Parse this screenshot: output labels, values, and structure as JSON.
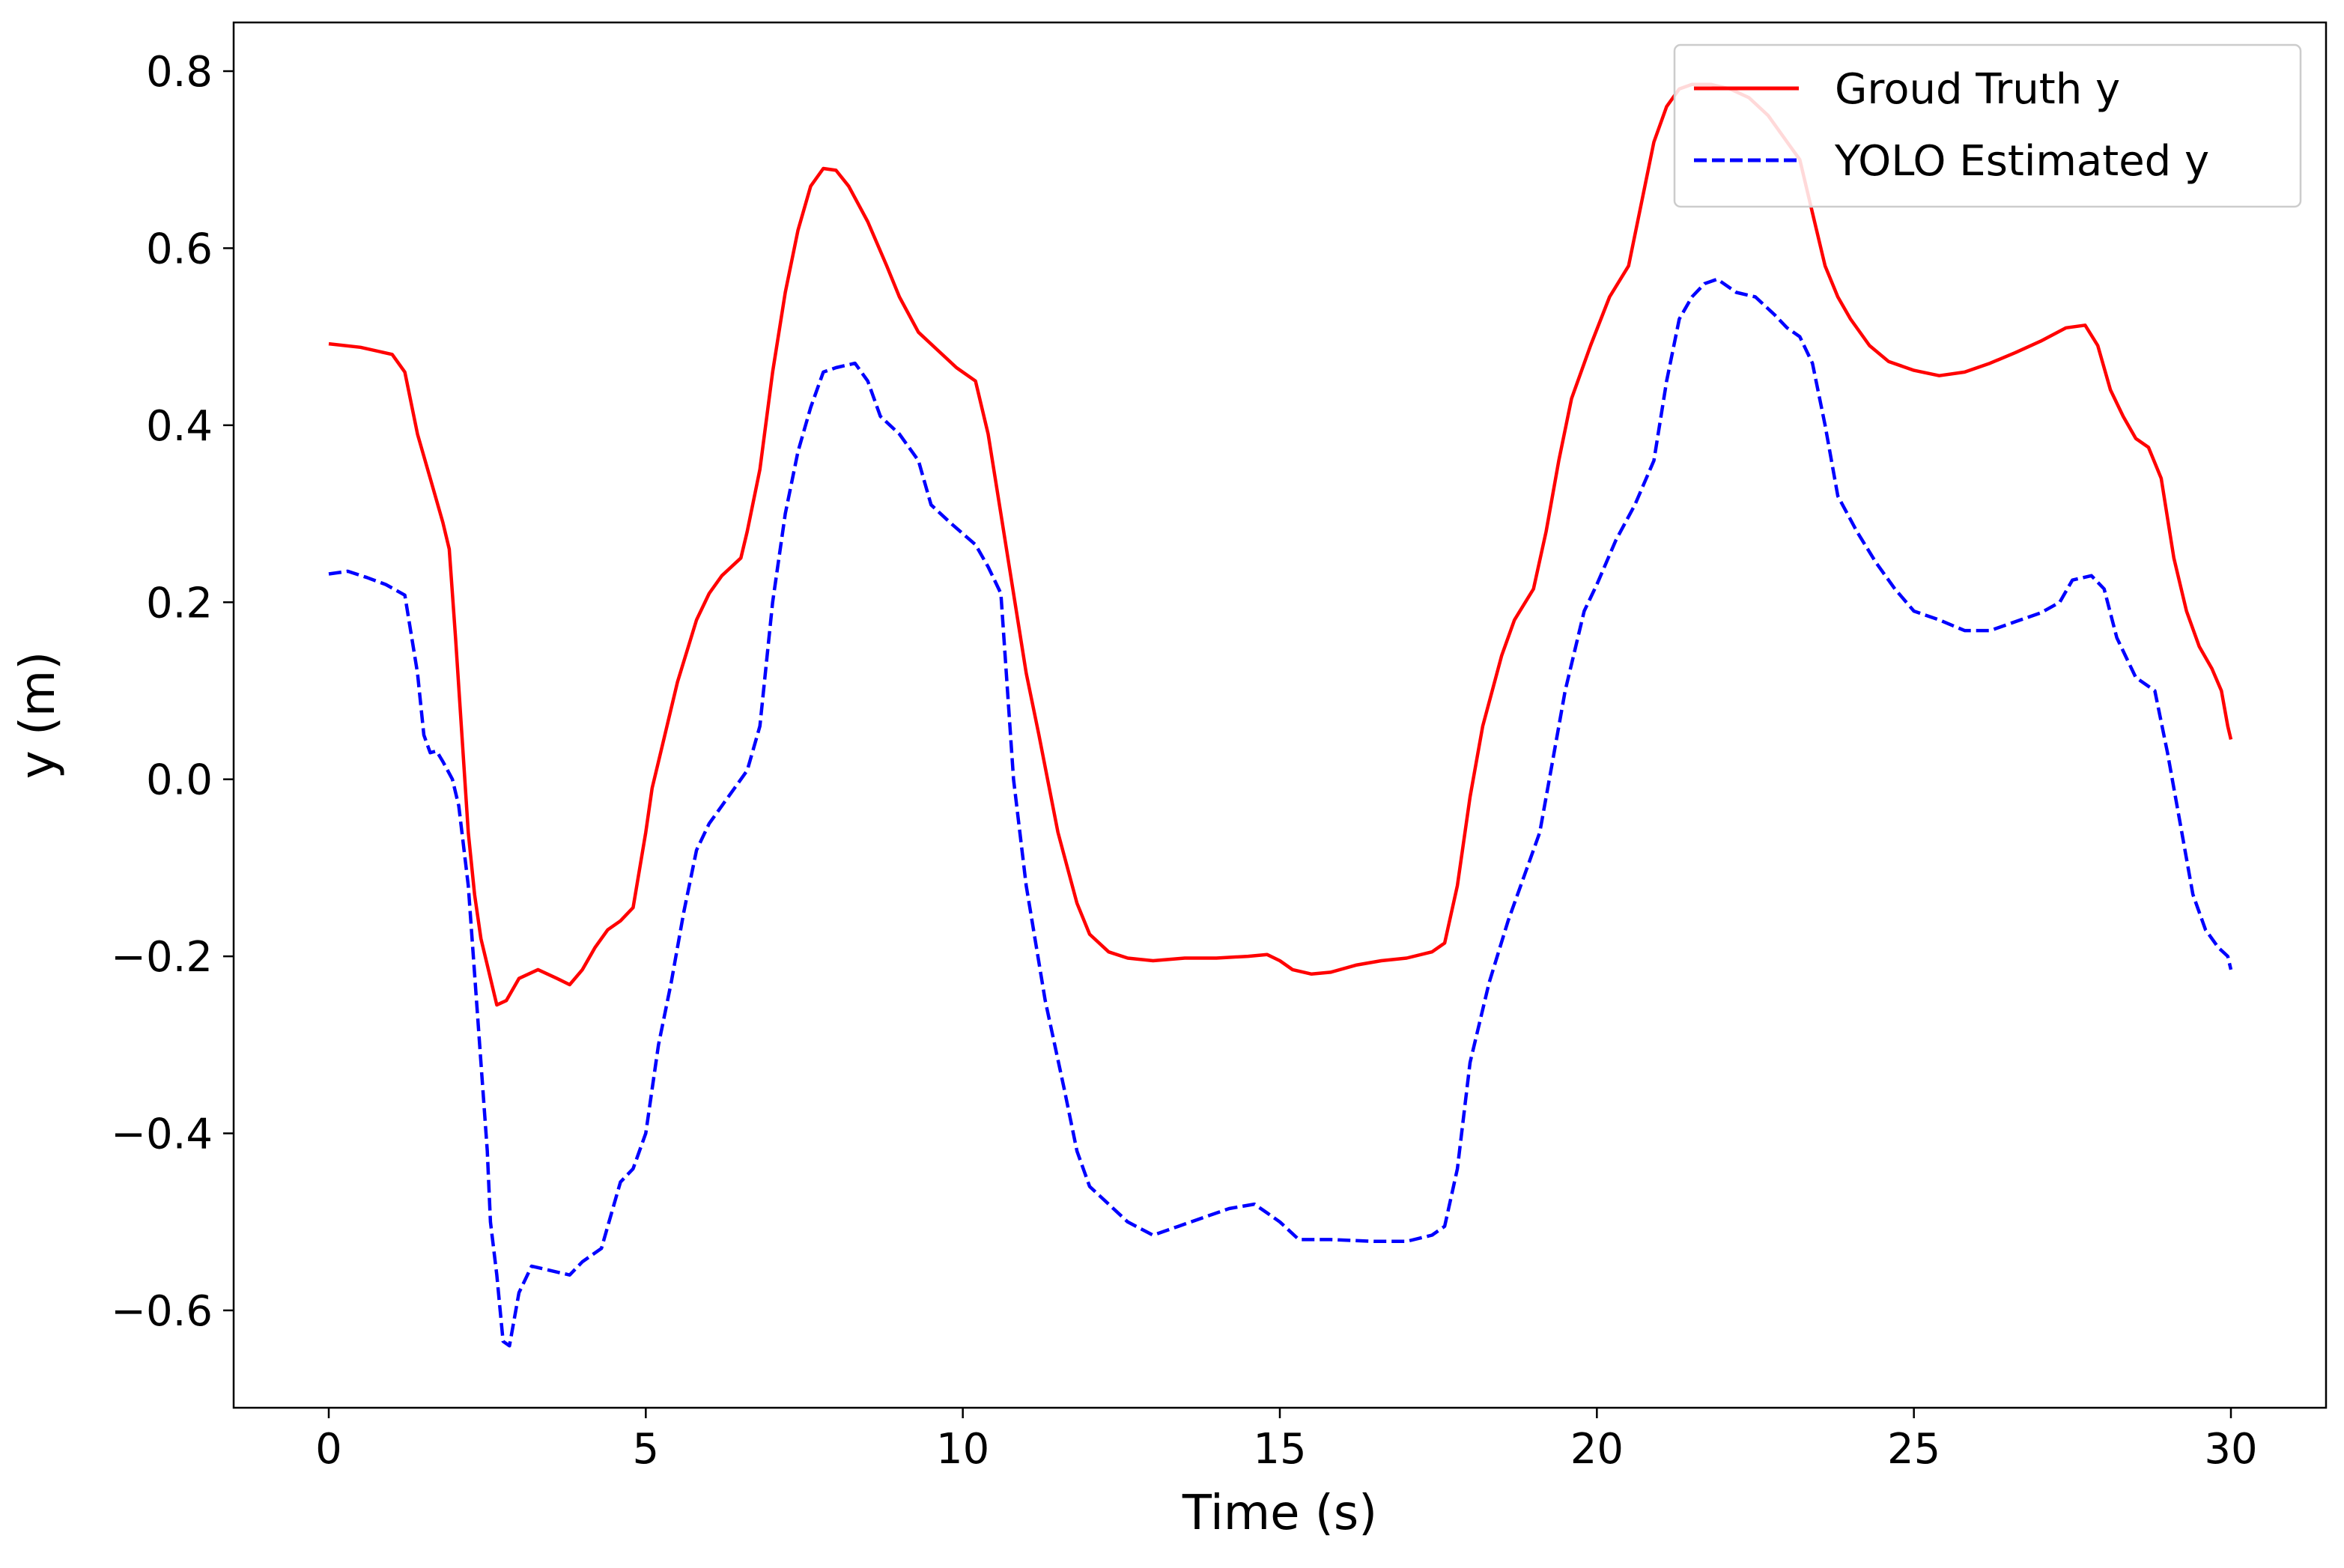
{
  "chart_data": {
    "type": "line",
    "title": "",
    "xlabel": "Time (s)",
    "ylabel": "y (m)",
    "xlim": [
      -1.5,
      31.5
    ],
    "ylim": [
      -0.71,
      0.855
    ],
    "xticks": [
      0,
      5,
      10,
      15,
      20,
      25,
      30
    ],
    "xtick_labels": [
      "0",
      "5",
      "10",
      "15",
      "20",
      "25",
      "30"
    ],
    "yticks": [
      -0.6,
      -0.4,
      -0.2,
      0.0,
      0.2,
      0.4,
      0.6,
      0.8
    ],
    "ytick_labels": [
      "−0.6",
      "−0.4",
      "−0.2",
      "0.0",
      "0.2",
      "0.4",
      "0.6",
      "0.8"
    ],
    "grid": false,
    "legend_position": "top-right",
    "series": [
      {
        "name": "Groud Truth y",
        "color": "#ff0000",
        "style": "solid",
        "points": [
          [
            0.0,
            0.492
          ],
          [
            0.5,
            0.488
          ],
          [
            1.0,
            0.48
          ],
          [
            1.2,
            0.46
          ],
          [
            1.4,
            0.39
          ],
          [
            1.6,
            0.34
          ],
          [
            1.8,
            0.29
          ],
          [
            1.9,
            0.26
          ],
          [
            2.0,
            0.16
          ],
          [
            2.1,
            0.05
          ],
          [
            2.2,
            -0.06
          ],
          [
            2.3,
            -0.13
          ],
          [
            2.4,
            -0.18
          ],
          [
            2.5,
            -0.21
          ],
          [
            2.65,
            -0.255
          ],
          [
            2.8,
            -0.25
          ],
          [
            3.0,
            -0.225
          ],
          [
            3.3,
            -0.215
          ],
          [
            3.6,
            -0.225
          ],
          [
            3.8,
            -0.232
          ],
          [
            4.0,
            -0.215
          ],
          [
            4.2,
            -0.19
          ],
          [
            4.4,
            -0.17
          ],
          [
            4.6,
            -0.16
          ],
          [
            4.8,
            -0.145
          ],
          [
            5.0,
            -0.06
          ],
          [
            5.1,
            -0.01
          ],
          [
            5.2,
            0.02
          ],
          [
            5.5,
            0.11
          ],
          [
            5.8,
            0.18
          ],
          [
            6.0,
            0.21
          ],
          [
            6.2,
            0.23
          ],
          [
            6.5,
            0.25
          ],
          [
            6.6,
            0.28
          ],
          [
            6.8,
            0.35
          ],
          [
            7.0,
            0.46
          ],
          [
            7.2,
            0.55
          ],
          [
            7.4,
            0.62
          ],
          [
            7.6,
            0.67
          ],
          [
            7.8,
            0.69
          ],
          [
            8.0,
            0.688
          ],
          [
            8.2,
            0.67
          ],
          [
            8.5,
            0.63
          ],
          [
            8.8,
            0.58
          ],
          [
            9.0,
            0.545
          ],
          [
            9.3,
            0.505
          ],
          [
            9.6,
            0.485
          ],
          [
            9.9,
            0.465
          ],
          [
            10.2,
            0.45
          ],
          [
            10.4,
            0.39
          ],
          [
            10.6,
            0.3
          ],
          [
            10.8,
            0.21
          ],
          [
            11.0,
            0.12
          ],
          [
            11.2,
            0.05
          ],
          [
            11.5,
            -0.06
          ],
          [
            11.8,
            -0.14
          ],
          [
            12.0,
            -0.175
          ],
          [
            12.3,
            -0.195
          ],
          [
            12.6,
            -0.202
          ],
          [
            13.0,
            -0.205
          ],
          [
            13.5,
            -0.202
          ],
          [
            14.0,
            -0.202
          ],
          [
            14.5,
            -0.2
          ],
          [
            14.8,
            -0.198
          ],
          [
            15.0,
            -0.205
          ],
          [
            15.2,
            -0.215
          ],
          [
            15.5,
            -0.22
          ],
          [
            15.8,
            -0.218
          ],
          [
            16.2,
            -0.21
          ],
          [
            16.6,
            -0.205
          ],
          [
            17.0,
            -0.202
          ],
          [
            17.4,
            -0.195
          ],
          [
            17.6,
            -0.185
          ],
          [
            17.8,
            -0.12
          ],
          [
            18.0,
            -0.02
          ],
          [
            18.2,
            0.06
          ],
          [
            18.5,
            0.14
          ],
          [
            18.7,
            0.18
          ],
          [
            19.0,
            0.215
          ],
          [
            19.2,
            0.28
          ],
          [
            19.4,
            0.36
          ],
          [
            19.6,
            0.43
          ],
          [
            19.9,
            0.49
          ],
          [
            20.2,
            0.545
          ],
          [
            20.5,
            0.58
          ],
          [
            20.7,
            0.65
          ],
          [
            20.9,
            0.72
          ],
          [
            21.1,
            0.76
          ],
          [
            21.3,
            0.78
          ],
          [
            21.5,
            0.785
          ],
          [
            21.8,
            0.785
          ],
          [
            22.1,
            0.78
          ],
          [
            22.4,
            0.77
          ],
          [
            22.7,
            0.75
          ],
          [
            23.0,
            0.72
          ],
          [
            23.2,
            0.7
          ],
          [
            23.4,
            0.64
          ],
          [
            23.6,
            0.58
          ],
          [
            23.8,
            0.545
          ],
          [
            24.0,
            0.52
          ],
          [
            24.3,
            0.49
          ],
          [
            24.6,
            0.472
          ],
          [
            25.0,
            0.462
          ],
          [
            25.4,
            0.456
          ],
          [
            25.8,
            0.46
          ],
          [
            26.2,
            0.47
          ],
          [
            26.6,
            0.482
          ],
          [
            27.0,
            0.495
          ],
          [
            27.4,
            0.51
          ],
          [
            27.7,
            0.513
          ],
          [
            27.9,
            0.49
          ],
          [
            28.1,
            0.44
          ],
          [
            28.3,
            0.41
          ],
          [
            28.5,
            0.385
          ],
          [
            28.7,
            0.375
          ],
          [
            28.9,
            0.34
          ],
          [
            29.1,
            0.25
          ],
          [
            29.3,
            0.19
          ],
          [
            29.5,
            0.15
          ],
          [
            29.7,
            0.125
          ],
          [
            29.85,
            0.1
          ],
          [
            29.95,
            0.06
          ],
          [
            30.0,
            0.045
          ]
        ]
      },
      {
        "name": "YOLO Estimated y",
        "color": "#0000ff",
        "style": "dashed",
        "points": [
          [
            0.0,
            0.232
          ],
          [
            0.3,
            0.235
          ],
          [
            0.6,
            0.228
          ],
          [
            0.9,
            0.22
          ],
          [
            1.2,
            0.208
          ],
          [
            1.4,
            0.12
          ],
          [
            1.5,
            0.05
          ],
          [
            1.6,
            0.03
          ],
          [
            1.7,
            0.032
          ],
          [
            1.8,
            0.02
          ],
          [
            1.95,
            0.0
          ],
          [
            2.05,
            -0.03
          ],
          [
            2.2,
            -0.12
          ],
          [
            2.4,
            -0.32
          ],
          [
            2.5,
            -0.42
          ],
          [
            2.55,
            -0.5
          ],
          [
            2.65,
            -0.56
          ],
          [
            2.75,
            -0.635
          ],
          [
            2.85,
            -0.64
          ],
          [
            3.0,
            -0.58
          ],
          [
            3.2,
            -0.55
          ],
          [
            3.5,
            -0.555
          ],
          [
            3.8,
            -0.56
          ],
          [
            4.0,
            -0.545
          ],
          [
            4.3,
            -0.53
          ],
          [
            4.5,
            -0.48
          ],
          [
            4.6,
            -0.455
          ],
          [
            4.8,
            -0.44
          ],
          [
            5.0,
            -0.4
          ],
          [
            5.2,
            -0.3
          ],
          [
            5.4,
            -0.23
          ],
          [
            5.6,
            -0.15
          ],
          [
            5.8,
            -0.08
          ],
          [
            6.0,
            -0.05
          ],
          [
            6.2,
            -0.03
          ],
          [
            6.4,
            -0.01
          ],
          [
            6.6,
            0.01
          ],
          [
            6.8,
            0.06
          ],
          [
            7.0,
            0.2
          ],
          [
            7.2,
            0.3
          ],
          [
            7.4,
            0.37
          ],
          [
            7.6,
            0.42
          ],
          [
            7.8,
            0.46
          ],
          [
            8.0,
            0.465
          ],
          [
            8.3,
            0.47
          ],
          [
            8.5,
            0.45
          ],
          [
            8.7,
            0.41
          ],
          [
            9.0,
            0.39
          ],
          [
            9.3,
            0.36
          ],
          [
            9.5,
            0.31
          ],
          [
            9.8,
            0.29
          ],
          [
            10.2,
            0.265
          ],
          [
            10.4,
            0.24
          ],
          [
            10.6,
            0.21
          ],
          [
            10.8,
            0.0
          ],
          [
            11.0,
            -0.12
          ],
          [
            11.3,
            -0.25
          ],
          [
            11.6,
            -0.35
          ],
          [
            11.8,
            -0.42
          ],
          [
            12.0,
            -0.46
          ],
          [
            12.3,
            -0.48
          ],
          [
            12.6,
            -0.5
          ],
          [
            13.0,
            -0.515
          ],
          [
            13.4,
            -0.505
          ],
          [
            13.8,
            -0.495
          ],
          [
            14.2,
            -0.485
          ],
          [
            14.6,
            -0.48
          ],
          [
            14.8,
            -0.49
          ],
          [
            15.0,
            -0.5
          ],
          [
            15.3,
            -0.52
          ],
          [
            15.8,
            -0.52
          ],
          [
            16.5,
            -0.522
          ],
          [
            17.0,
            -0.522
          ],
          [
            17.4,
            -0.515
          ],
          [
            17.6,
            -0.505
          ],
          [
            17.8,
            -0.44
          ],
          [
            18.0,
            -0.32
          ],
          [
            18.3,
            -0.23
          ],
          [
            18.6,
            -0.16
          ],
          [
            18.9,
            -0.1
          ],
          [
            19.1,
            -0.06
          ],
          [
            19.3,
            0.02
          ],
          [
            19.5,
            0.1
          ],
          [
            19.8,
            0.19
          ],
          [
            20.0,
            0.22
          ],
          [
            20.3,
            0.27
          ],
          [
            20.6,
            0.31
          ],
          [
            20.9,
            0.36
          ],
          [
            21.1,
            0.45
          ],
          [
            21.3,
            0.52
          ],
          [
            21.5,
            0.545
          ],
          [
            21.7,
            0.56
          ],
          [
            21.9,
            0.565
          ],
          [
            22.2,
            0.55
          ],
          [
            22.5,
            0.545
          ],
          [
            22.8,
            0.525
          ],
          [
            23.0,
            0.51
          ],
          [
            23.2,
            0.5
          ],
          [
            23.4,
            0.47
          ],
          [
            23.6,
            0.4
          ],
          [
            23.8,
            0.32
          ],
          [
            24.1,
            0.28
          ],
          [
            24.4,
            0.245
          ],
          [
            24.7,
            0.215
          ],
          [
            25.0,
            0.19
          ],
          [
            25.4,
            0.18
          ],
          [
            25.8,
            0.168
          ],
          [
            26.2,
            0.168
          ],
          [
            26.6,
            0.178
          ],
          [
            27.0,
            0.188
          ],
          [
            27.3,
            0.2
          ],
          [
            27.5,
            0.225
          ],
          [
            27.8,
            0.23
          ],
          [
            28.0,
            0.215
          ],
          [
            28.2,
            0.16
          ],
          [
            28.5,
            0.115
          ],
          [
            28.8,
            0.1
          ],
          [
            29.0,
            0.03
          ],
          [
            29.2,
            -0.05
          ],
          [
            29.4,
            -0.13
          ],
          [
            29.6,
            -0.17
          ],
          [
            29.8,
            -0.19
          ],
          [
            29.95,
            -0.2
          ],
          [
            30.0,
            -0.215
          ]
        ]
      }
    ]
  }
}
